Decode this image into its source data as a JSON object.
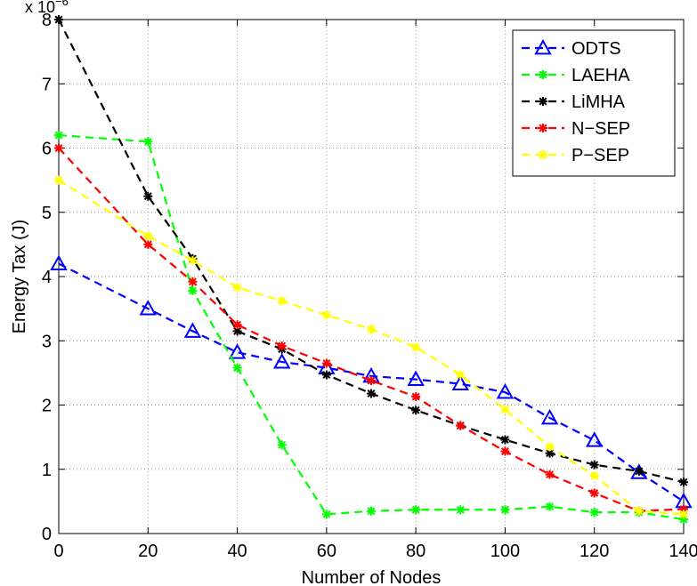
{
  "chart_data": {
    "type": "line",
    "title": "",
    "xlabel": "Number of Nodes",
    "ylabel": "Energy Tax (J)",
    "y_scale_label": "x 10",
    "y_scale_exponent": "−6",
    "xlim": [
      0,
      140
    ],
    "ylim": [
      0,
      8
    ],
    "xticks": [
      0,
      20,
      40,
      60,
      80,
      100,
      120,
      140
    ],
    "yticks": [
      0,
      1,
      2,
      3,
      4,
      5,
      6,
      7,
      8
    ],
    "grid": true,
    "legend_position": "top-right",
    "x": [
      0,
      20,
      30,
      40,
      50,
      60,
      70,
      80,
      90,
      100,
      110,
      120,
      130,
      140
    ],
    "series": [
      {
        "name": "ODTS",
        "color": "#0000ff",
        "marker": "triangle",
        "values": [
          4.2,
          3.5,
          3.15,
          2.82,
          2.67,
          2.58,
          2.45,
          2.4,
          2.33,
          2.2,
          1.8,
          1.45,
          0.95,
          0.5
        ]
      },
      {
        "name": "LAEHA",
        "color": "#00ff00",
        "marker": "star",
        "values": [
          6.2,
          6.1,
          3.78,
          2.58,
          1.38,
          0.3,
          0.35,
          0.37,
          0.37,
          0.37,
          0.42,
          0.33,
          0.33,
          0.22
        ]
      },
      {
        "name": "LiMHA",
        "color": "#000000",
        "marker": "star",
        "values": [
          8.0,
          5.25,
          4.28,
          3.15,
          2.87,
          2.47,
          2.18,
          1.92,
          1.68,
          1.46,
          1.25,
          1.07,
          0.97,
          0.8
        ]
      },
      {
        "name": "N−SEP",
        "color": "#ff0000",
        "marker": "star",
        "values": [
          6.0,
          4.5,
          3.92,
          3.25,
          2.92,
          2.65,
          2.38,
          2.13,
          1.68,
          1.28,
          0.92,
          0.63,
          0.35,
          0.38
        ]
      },
      {
        "name": "P−SEP",
        "color": "#ffff00",
        "marker": "star",
        "values": [
          5.5,
          4.63,
          4.25,
          3.83,
          3.62,
          3.4,
          3.18,
          2.9,
          2.47,
          1.93,
          1.35,
          0.9,
          0.35,
          0.3
        ]
      }
    ]
  }
}
